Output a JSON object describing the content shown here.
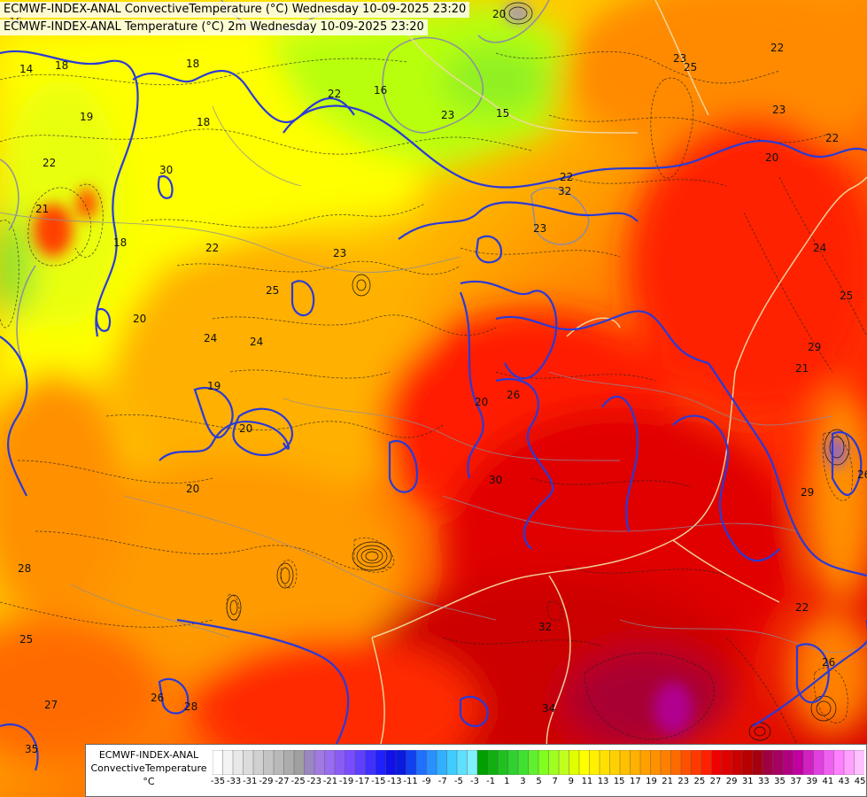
{
  "header": {
    "line1": "ECMWF-INDEX-ANAL ConvectiveTemperature (°C) Wednesday 10-09-2025 23:20",
    "line2": "ECMWF-INDEX-ANAL Temperature (°C) 2m Wednesday 10-09-2025 23:20"
  },
  "legend": {
    "title_line1": "ECMWF-INDEX-ANAL",
    "title_line2": "ConvectiveTemperature",
    "title_line3": "°C",
    "tick_labels": [
      "-35",
      "-33",
      "-31",
      "-29",
      "-27",
      "-25",
      "-23",
      "-21",
      "-19",
      "-17",
      "-15",
      "-13",
      "-11",
      "-9",
      "-7",
      "-5",
      "-3",
      "-1",
      "1",
      "3",
      "5",
      "7",
      "9",
      "11",
      "13",
      "15",
      "17",
      "19",
      "21",
      "23",
      "25",
      "27",
      "29",
      "31",
      "33",
      "35",
      "37",
      "39",
      "41",
      "43",
      "45"
    ],
    "colors": [
      "#ffffff",
      "#f4f4f4",
      "#e8e8e8",
      "#dcdcdc",
      "#d0d0d0",
      "#c4c4c4",
      "#b8b8b8",
      "#acacac",
      "#a0a0a0",
      "#9a86c0",
      "#a07ae0",
      "#9a6cf0",
      "#8a5cf6",
      "#7a4cff",
      "#6040ff",
      "#4030ff",
      "#2020ff",
      "#1010e8",
      "#0a1ae0",
      "#1040f0",
      "#2070ff",
      "#2890ff",
      "#30b0ff",
      "#40ccff",
      "#60e0ff",
      "#80f0ff",
      "#00a000",
      "#10b010",
      "#20c020",
      "#30d030",
      "#40e030",
      "#60f030",
      "#80ff20",
      "#a0ff20",
      "#c0ff20",
      "#e0ff00",
      "#ffff00",
      "#fff000",
      "#ffe000",
      "#ffd000",
      "#ffc000",
      "#ffb000",
      "#ffa000",
      "#ff9000",
      "#ff8000",
      "#ff6a00",
      "#ff5000",
      "#ff3a00",
      "#ff2000",
      "#f00000",
      "#e00000",
      "#cc0000",
      "#b80000",
      "#a80010",
      "#a00040",
      "#a80060",
      "#b00080",
      "#c000a0",
      "#d020c0",
      "#e040e0",
      "#f060f0",
      "#ff80ff",
      "#ffa0ff",
      "#ffc0ff"
    ]
  },
  "map": {
    "contour_labels": [
      "18",
      "19",
      "18",
      "18",
      "21",
      "22",
      "22",
      "23",
      "25",
      "24",
      "20",
      "19",
      "20",
      "20",
      "22",
      "23",
      "20",
      "15",
      "16",
      "16",
      "14",
      "18",
      "20",
      "22",
      "25",
      "22",
      "23",
      "22",
      "26",
      "20",
      "23",
      "24",
      "25",
      "21",
      "29",
      "26",
      "22",
      "26",
      "35",
      "28",
      "29",
      "32",
      "34",
      "30",
      "30",
      "27",
      "25",
      "23",
      "24",
      "32",
      "26",
      "28"
    ]
  }
}
